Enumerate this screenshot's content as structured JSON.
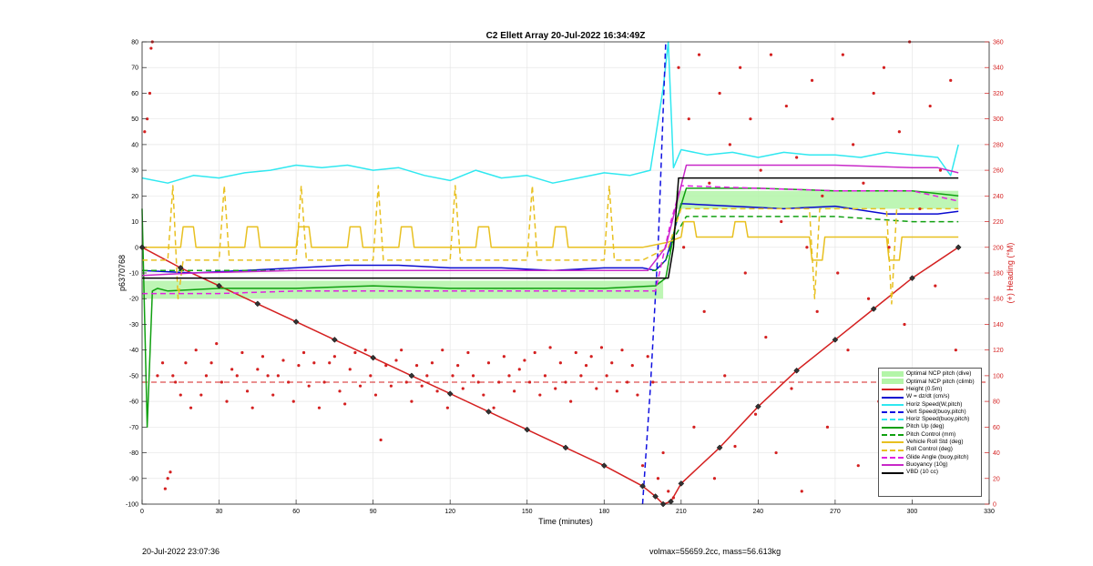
{
  "chart_data": {
    "type": "line",
    "title": "C2 Ellett Array 20-Jul-2022 16:34:49Z",
    "xlabel": "Time (minutes)",
    "ylabel": "p6370768",
    "y2label": "(+) Heading (°M)",
    "xlim": [
      0,
      330
    ],
    "ylim": [
      -100,
      80
    ],
    "y2lim": [
      0,
      360
    ],
    "xticks": [
      0,
      30,
      60,
      90,
      120,
      150,
      180,
      210,
      240,
      270,
      300,
      330
    ],
    "yticks": [
      -100,
      -90,
      -80,
      -70,
      -60,
      -50,
      -40,
      -30,
      -20,
      -10,
      0,
      10,
      20,
      30,
      40,
      50,
      60,
      70,
      80
    ],
    "y2ticks": [
      0,
      20,
      40,
      60,
      80,
      100,
      120,
      140,
      160,
      180,
      200,
      220,
      240,
      260,
      280,
      300,
      320,
      340,
      360
    ],
    "grid": true,
    "legend_position": "bottom-right",
    "optimal_pitch_dive": {
      "x": [
        0,
        203
      ],
      "y": [
        -20,
        -13
      ]
    },
    "optimal_pitch_climb": {
      "x": [
        208,
        318
      ],
      "y": [
        15,
        22
      ]
    },
    "heading_reference": 95,
    "series": [
      {
        "name": "Optimal NCP pitch (dive)",
        "color": "#b3f5a8",
        "style": "fill",
        "axis": "left",
        "x": [],
        "y": []
      },
      {
        "name": "Optimal NCP pitch (climb)",
        "color": "#b3f5a8",
        "style": "fill",
        "axis": "left",
        "x": [],
        "y": []
      },
      {
        "name": "Height (0.5m)",
        "color": "#d42020",
        "style": "solid",
        "axis": "left",
        "x": [
          0,
          15,
          30,
          45,
          60,
          75,
          90,
          105,
          120,
          135,
          150,
          165,
          180,
          195,
          200,
          203,
          206,
          210,
          225,
          240,
          255,
          270,
          285,
          300,
          318
        ],
        "y": [
          0,
          -8,
          -15,
          -22,
          -29,
          -36,
          -43,
          -50,
          -57,
          -64,
          -71,
          -78,
          -85,
          -93,
          -97,
          -100,
          -99,
          -92,
          -78,
          -62,
          -48,
          -36,
          -24,
          -12,
          0
        ]
      },
      {
        "name": "W = dz/dt (cm/s)",
        "color": "#0a0ad0",
        "style": "solid",
        "axis": "left",
        "x": [
          0,
          20,
          40,
          60,
          80,
          100,
          120,
          140,
          160,
          180,
          195,
          200,
          204,
          207,
          210,
          230,
          250,
          270,
          290,
          310,
          318
        ],
        "y": [
          -9,
          -10,
          -9,
          -8,
          -7,
          -7,
          -8,
          -8,
          -9,
          -8,
          -8,
          -9,
          -5,
          5,
          17,
          16,
          15,
          16,
          13,
          13,
          14
        ]
      },
      {
        "name": "Horiz Speed(W,pitch)",
        "color": "#30e8f0",
        "style": "solid",
        "axis": "left",
        "x": [
          0,
          10,
          20,
          30,
          40,
          50,
          60,
          70,
          80,
          90,
          100,
          110,
          120,
          130,
          140,
          150,
          160,
          170,
          180,
          190,
          198,
          203,
          205,
          207,
          210,
          220,
          230,
          240,
          250,
          260,
          270,
          280,
          290,
          300,
          310,
          315,
          318
        ],
        "y": [
          27,
          25,
          28,
          27,
          29,
          30,
          32,
          31,
          32,
          30,
          31,
          28,
          26,
          30,
          27,
          28,
          25,
          27,
          29,
          28,
          30,
          62,
          80,
          31,
          38,
          36,
          37,
          35,
          37,
          36,
          36,
          35,
          37,
          36,
          35,
          28,
          40
        ]
      },
      {
        "name": "Vert Speed(buoy,pitch)",
        "color": "#1010e0",
        "style": "dash",
        "axis": "left",
        "x": [
          195,
          198,
          201,
          204
        ],
        "y": [
          -100,
          -55,
          0,
          80
        ]
      },
      {
        "name": "Horiz Speed(buoy,pitch)",
        "color": "#30e8f0",
        "style": "dash",
        "axis": "left",
        "x": [],
        "y": []
      },
      {
        "name": "Pitch Up (deg)",
        "color": "#10a010",
        "style": "solid",
        "axis": "left",
        "x": [
          0,
          2,
          4,
          6,
          10,
          30,
          60,
          90,
          120,
          150,
          180,
          200,
          204,
          208,
          212,
          240,
          270,
          300,
          318
        ],
        "y": [
          15,
          -70,
          -17,
          -16,
          -17,
          -16,
          -16,
          -15,
          -16,
          -16,
          -16,
          -15,
          -12,
          10,
          23,
          23,
          22,
          22,
          20
        ]
      },
      {
        "name": "Pitch Control (mm)",
        "color": "#10a010",
        "style": "dash",
        "axis": "left",
        "x": [
          0,
          20,
          40,
          60,
          80,
          100,
          120,
          140,
          160,
          180,
          200,
          204,
          208,
          212,
          240,
          270,
          300,
          318
        ],
        "y": [
          -9,
          -9,
          -9,
          -9,
          -9,
          -9,
          -9,
          -9,
          -9,
          -9,
          -9,
          -5,
          5,
          12,
          12,
          12,
          10,
          10
        ]
      },
      {
        "name": "Vehicle Roll Std (deg)",
        "color": "#e8c020",
        "style": "solid",
        "axis": "left",
        "x": [
          0,
          15,
          16,
          20,
          21,
          40,
          41,
          45,
          46,
          60,
          61,
          65,
          66,
          80,
          81,
          85,
          86,
          100,
          101,
          105,
          106,
          130,
          131,
          135,
          136,
          160,
          161,
          165,
          166,
          195,
          205,
          210,
          211,
          215,
          216,
          230,
          231,
          235,
          236,
          260,
          261,
          265,
          266,
          290,
          291,
          295,
          296,
          318
        ],
        "y": [
          0,
          0,
          8,
          8,
          0,
          0,
          8,
          8,
          0,
          0,
          8,
          8,
          0,
          0,
          8,
          8,
          0,
          0,
          8,
          8,
          0,
          0,
          8,
          8,
          0,
          0,
          8,
          8,
          0,
          0,
          2,
          4,
          10,
          10,
          4,
          4,
          10,
          10,
          4,
          4,
          -5,
          -5,
          4,
          4,
          -5,
          -5,
          4,
          4
        ]
      },
      {
        "name": "Roll Control (deg)",
        "color": "#e8c020",
        "style": "dash",
        "axis": "left",
        "x": [
          0,
          10,
          12,
          14,
          16,
          30,
          32,
          34,
          60,
          62,
          64,
          90,
          92,
          94,
          120,
          122,
          124,
          150,
          152,
          154,
          180,
          182,
          184,
          195,
          205,
          210,
          240,
          260,
          262,
          264,
          290,
          292,
          294,
          318
        ],
        "y": [
          -5,
          -5,
          24,
          -20,
          -5,
          -5,
          24,
          -5,
          -5,
          24,
          -5,
          -5,
          24,
          -5,
          -5,
          24,
          -5,
          -5,
          24,
          -5,
          -5,
          24,
          -5,
          -5,
          0,
          15,
          15,
          15,
          -20,
          15,
          15,
          -22,
          15,
          15
        ]
      },
      {
        "name": "Glide Angle (buoy,pitch)",
        "color": "#e020e0",
        "style": "dash",
        "axis": "left",
        "x": [
          0,
          30,
          60,
          90,
          120,
          150,
          180,
          200,
          206,
          210,
          240,
          270,
          300,
          318
        ],
        "y": [
          -18,
          -18,
          -17,
          -17,
          -17,
          -17,
          -17,
          -17,
          10,
          24,
          23,
          22,
          22,
          18
        ]
      },
      {
        "name": "Buoyancy (10g)",
        "color": "#c828c8",
        "style": "solid",
        "axis": "left",
        "x": [
          0,
          20,
          60,
          100,
          140,
          180,
          197,
          204,
          209,
          212,
          240,
          270,
          300,
          310,
          318
        ],
        "y": [
          -11,
          -10,
          -9,
          -9,
          -9,
          -9,
          -9,
          0,
          20,
          32,
          32,
          32,
          31,
          31,
          29
        ]
      },
      {
        "name": "VBD (10 cc)",
        "color": "#000000",
        "style": "solid",
        "axis": "left",
        "x": [
          0,
          50,
          100,
          150,
          200,
          205,
          207,
          209,
          250,
          300,
          318
        ],
        "y": [
          -12,
          -12,
          -12,
          -12,
          -12,
          -12,
          0,
          27,
          27,
          27,
          27
        ]
      },
      {
        "name": "Heading",
        "color": "#d42020",
        "style": "points",
        "axis": "right",
        "x": [
          1,
          2,
          3,
          3.5,
          4,
          6,
          8,
          9,
          10,
          11,
          12,
          13,
          15,
          17,
          19,
          21,
          23,
          25,
          27,
          29,
          31,
          33,
          35,
          37,
          39,
          41,
          43,
          45,
          47,
          49,
          51,
          53,
          55,
          57,
          59,
          61,
          63,
          65,
          67,
          69,
          71,
          73,
          75,
          77,
          79,
          81,
          83,
          85,
          87,
          89,
          91,
          93,
          95,
          97,
          99,
          101,
          103,
          105,
          107,
          109,
          111,
          113,
          115,
          117,
          119,
          121,
          123,
          125,
          127,
          129,
          131,
          133,
          135,
          137,
          139,
          141,
          143,
          145,
          147,
          149,
          151,
          153,
          155,
          157,
          159,
          161,
          163,
          165,
          167,
          169,
          171,
          173,
          175,
          177,
          179,
          181,
          183,
          185,
          187,
          189,
          191,
          193,
          195,
          197,
          199,
          201,
          203,
          205,
          207,
          209,
          211,
          213,
          215,
          217,
          219,
          221,
          223,
          225,
          227,
          229,
          231,
          233,
          235,
          237,
          239,
          241,
          243,
          245,
          247,
          249,
          251,
          253,
          255,
          257,
          259,
          261,
          263,
          265,
          267,
          269,
          271,
          273,
          275,
          277,
          279,
          281,
          283,
          285,
          287,
          289,
          291,
          293,
          295,
          297,
          299,
          301,
          303,
          305,
          307,
          309,
          311,
          313,
          315,
          317
        ],
        "y": [
          290,
          300,
          320,
          355,
          360,
          100,
          110,
          12,
          20,
          25,
          100,
          95,
          85,
          110,
          75,
          120,
          85,
          100,
          110,
          125,
          95,
          80,
          105,
          100,
          118,
          88,
          75,
          105,
          115,
          100,
          85,
          100,
          112,
          95,
          80,
          108,
          118,
          92,
          110,
          75,
          95,
          110,
          115,
          88,
          78,
          105,
          118,
          92,
          120,
          100,
          85,
          50,
          108,
          92,
          112,
          120,
          95,
          80,
          108,
          92,
          100,
          110,
          88,
          120,
          75,
          100,
          108,
          90,
          118,
          100,
          95,
          85,
          110,
          75,
          95,
          115,
          100,
          88,
          105,
          112,
          95,
          118,
          85,
          100,
          122,
          90,
          110,
          95,
          80,
          118,
          100,
          108,
          115,
          90,
          122,
          100,
          110,
          88,
          120,
          95,
          108,
          85,
          30,
          115,
          95,
          20,
          40,
          10,
          5,
          340,
          200,
          300,
          60,
          350,
          150,
          250,
          20,
          320,
          100,
          280,
          45,
          340,
          180,
          300,
          70,
          260,
          130,
          350,
          40,
          220,
          310,
          90,
          270,
          10,
          200,
          330,
          150,
          240,
          60,
          300,
          180,
          350,
          120,
          280,
          30,
          250,
          160,
          320,
          80,
          340,
          200,
          20,
          290,
          140,
          360,
          100,
          230,
          50,
          310,
          170,
          260,
          10,
          330,
          120
        ]
      }
    ]
  },
  "footer": {
    "left": "20-Jul-2022 23:07:36",
    "right": "volmax=55659.2cc, mass=56.613kg"
  }
}
